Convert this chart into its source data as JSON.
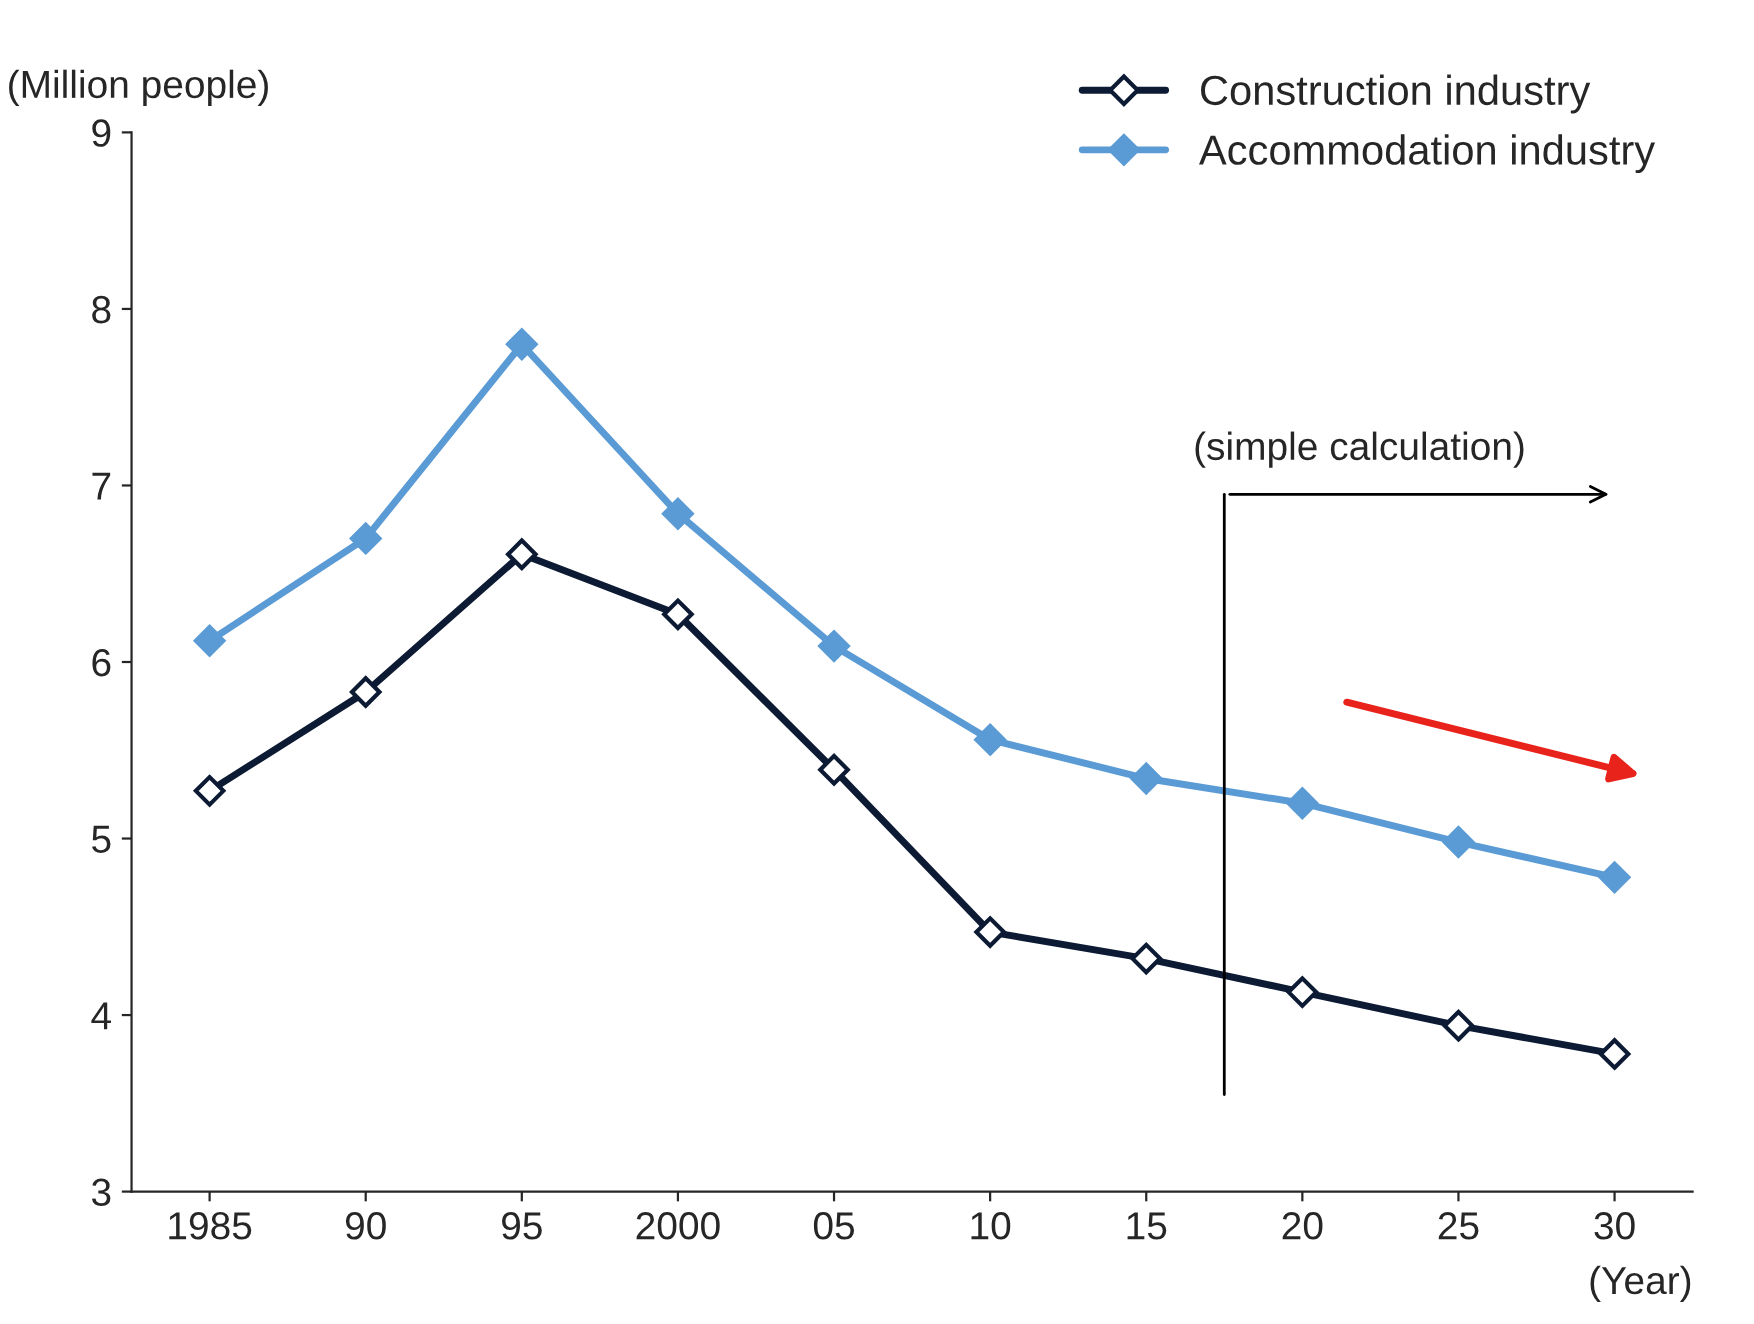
{
  "chart_data": {
    "type": "line",
    "ylabel": "(Million people)",
    "xlabel": "(Year)",
    "categories": [
      "1985",
      "90",
      "95",
      "2000",
      "05",
      "10",
      "15",
      "20",
      "25",
      "30"
    ],
    "series": [
      {
        "name": "Construction industry",
        "color": "#0d1a33",
        "values": [
          5.27,
          5.83,
          6.61,
          6.27,
          5.39,
          4.47,
          4.32,
          4.13,
          3.94,
          3.78
        ]
      },
      {
        "name": "Accommodation industry",
        "color": "#5b9bd5",
        "values": [
          6.12,
          6.7,
          7.8,
          6.84,
          6.09,
          5.56,
          5.34,
          5.2,
          4.98,
          4.78
        ]
      }
    ],
    "ylim": [
      3,
      9
    ],
    "yticks": [
      3,
      4,
      5,
      6,
      7,
      8,
      9
    ],
    "marker": "diamond",
    "line_style": "solid",
    "grid": false,
    "legend": "top right",
    "annotations": [
      "(simple calculation)"
    ]
  }
}
